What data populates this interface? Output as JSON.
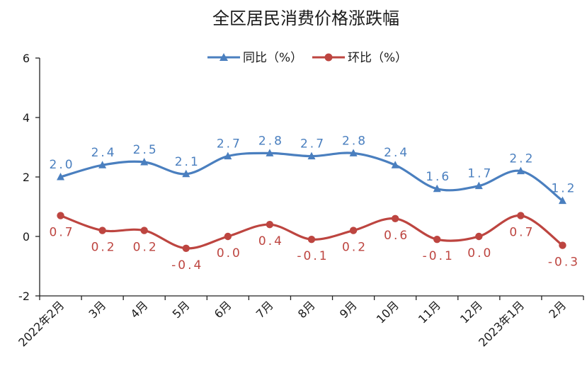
{
  "chart_data": {
    "type": "line",
    "title": "全区居民消费价格涨跌幅",
    "categories": [
      "2022年2月",
      "3月",
      "4月",
      "5月",
      "6月",
      "7月",
      "8月",
      "9月",
      "10月",
      "11月",
      "12月",
      "2023年1月",
      "2月"
    ],
    "series": [
      {
        "name": "同比（%）",
        "color": "#4a7fbf",
        "marker": "triangle",
        "values": [
          2.0,
          2.4,
          2.5,
          2.1,
          2.7,
          2.8,
          2.7,
          2.8,
          2.4,
          1.6,
          1.7,
          2.2,
          1.2
        ],
        "labels": [
          "2.0",
          "2.4",
          "2.5",
          "2.1",
          "2.7",
          "2.8",
          "2.7",
          "2.8",
          "2.4",
          "1.6",
          "1.7",
          "2.2",
          "1.2"
        ]
      },
      {
        "name": "环比（%）",
        "color": "#bd4540",
        "marker": "circle",
        "values": [
          0.7,
          0.2,
          0.2,
          -0.4,
          0.0,
          0.4,
          -0.1,
          0.2,
          0.6,
          -0.1,
          0.0,
          0.7,
          -0.3
        ],
        "labels": [
          "0.7",
          "0.2",
          "0.2",
          "-0.4",
          "0.0",
          "0.4",
          "-0.1",
          "0.2",
          "0.6",
          "-0.1",
          "0.0",
          "0.7",
          "-0.3"
        ]
      }
    ],
    "yticks": [
      "6",
      "4",
      "2",
      "0",
      "-2"
    ],
    "ylim": [
      -2,
      6
    ],
    "grid": false,
    "legend": "top"
  }
}
